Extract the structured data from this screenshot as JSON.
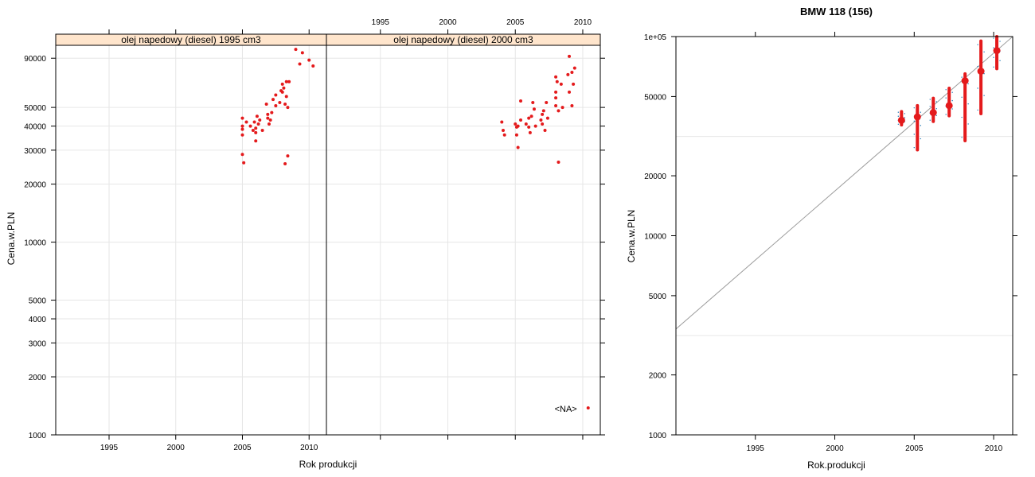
{
  "colors": {
    "point": "#e41a1c",
    "strip_bg": "#ffe5cc",
    "grid": "#e6e6e6",
    "ref_line": "#9b9b9b",
    "jitter": "#1f78b4"
  },
  "chart_data": [
    {
      "type": "scatter",
      "xlabel": "Rok produkcji",
      "ylabel": "Cena.w.PLN",
      "x_scale": "linear",
      "y_scale": "log",
      "xlim": [
        1991,
        2011.3
      ],
      "ylim": [
        1000,
        105000
      ],
      "x_ticks": [
        1995,
        2000,
        2005,
        2010
      ],
      "y_ticks": [
        1000,
        2000,
        3000,
        4000,
        5000,
        10000,
        20000,
        30000,
        40000,
        50000,
        90000
      ],
      "grid": true,
      "panels": [
        {
          "strip": "olej napedowy (diesel) 1995 cm3",
          "points": [
            [
              2005,
              44000
            ],
            [
              2005,
              40000
            ],
            [
              2005,
              38500
            ],
            [
              2005,
              36000
            ],
            [
              2005,
              28500
            ],
            [
              2005.1,
              25800
            ],
            [
              2005.3,
              42000
            ],
            [
              2005.6,
              40000
            ],
            [
              2005.8,
              38000
            ],
            [
              2005.9,
              42000
            ],
            [
              2006,
              39000
            ],
            [
              2006,
              37000
            ],
            [
              2006,
              33500
            ],
            [
              2006.1,
              45000
            ],
            [
              2006.2,
              41000
            ],
            [
              2006.3,
              43000
            ],
            [
              2006.5,
              38000
            ],
            [
              2006.8,
              52000
            ],
            [
              2006.9,
              46000
            ],
            [
              2006.9,
              44000
            ],
            [
              2007,
              41000
            ],
            [
              2007.1,
              43000
            ],
            [
              2007.2,
              47000
            ],
            [
              2007.3,
              55000
            ],
            [
              2007.5,
              51000
            ],
            [
              2007.5,
              58000
            ],
            [
              2007.8,
              53000
            ],
            [
              2007.9,
              61000
            ],
            [
              2008,
              66000
            ],
            [
              2008.1,
              63000
            ],
            [
              2008,
              60000
            ],
            [
              2008.3,
              68000
            ],
            [
              2008.3,
              57000
            ],
            [
              2008.2,
              52000
            ],
            [
              2008.4,
              50000
            ],
            [
              2008.2,
              25500
            ],
            [
              2008.4,
              28000
            ],
            [
              2008.5,
              68000
            ],
            [
              2009,
              100000
            ],
            [
              2009.3,
              84000
            ],
            [
              2009.5,
              96000
            ],
            [
              2010,
              88000
            ],
            [
              2010.3,
              82000
            ]
          ]
        },
        {
          "strip": "olej napedowy (diesel) 2000 cm3",
          "na_label": "<NA>",
          "na_point": [
            2010.4,
            1380
          ],
          "points": [
            [
              2004,
              42000
            ],
            [
              2004.1,
              38000
            ],
            [
              2004.2,
              36000
            ],
            [
              2005,
              41000
            ],
            [
              2005.1,
              39500
            ],
            [
              2005.2,
              40000
            ],
            [
              2005.4,
              43000
            ],
            [
              2005.1,
              36000
            ],
            [
              2005.2,
              31000
            ],
            [
              2005.4,
              54000
            ],
            [
              2005.8,
              41000
            ],
            [
              2006,
              44000
            ],
            [
              2006,
              39500
            ],
            [
              2006.1,
              37000
            ],
            [
              2006.2,
              45000
            ],
            [
              2006.3,
              53000
            ],
            [
              2006.4,
              49000
            ],
            [
              2006.5,
              40000
            ],
            [
              2006.9,
              43000
            ],
            [
              2007,
              46000
            ],
            [
              2007,
              41000
            ],
            [
              2007.2,
              38000
            ],
            [
              2007.1,
              48000
            ],
            [
              2007.4,
              44000
            ],
            [
              2007.3,
              53000
            ],
            [
              2008,
              60000
            ],
            [
              2008,
              72000
            ],
            [
              2008.1,
              68000
            ],
            [
              2008,
              56000
            ],
            [
              2008,
              51000
            ],
            [
              2008.2,
              48000
            ],
            [
              2008.2,
              26000
            ],
            [
              2008.4,
              66000
            ],
            [
              2008.5,
              50000
            ],
            [
              2008.9,
              74000
            ],
            [
              2009,
              92000
            ],
            [
              2009,
              60000
            ],
            [
              2009.2,
              51000
            ],
            [
              2009.2,
              76000
            ],
            [
              2009.3,
              66000
            ],
            [
              2009.4,
              80000
            ]
          ]
        }
      ]
    },
    {
      "type": "scatter",
      "title": "BMW 118 (156)",
      "xlabel": "Rok.produkcji",
      "ylabel": "Cena.w.PLN",
      "x_scale": "linear",
      "y_scale": "log",
      "xlim": [
        1990,
        2011.2
      ],
      "ylim": [
        1000,
        100000
      ],
      "x_ticks": [
        1995,
        2000,
        2005,
        2010
      ],
      "y_ticks": [
        1000,
        2000,
        5000,
        10000,
        20000,
        50000
      ],
      "y_tick_labels": [
        "1000",
        "2000",
        "5000",
        "10000",
        "20000",
        "50000"
      ],
      "y_top_label": "1e+05",
      "grid": true,
      "reference_line": [
        [
          1990,
          3400
        ],
        [
          2011.2,
          100000
        ]
      ],
      "ranges": [
        {
          "x": 2004.2,
          "lo": 36000,
          "hi": 42000,
          "mid": 38000
        },
        {
          "x": 2005.2,
          "lo": 27000,
          "hi": 45000,
          "mid": 39500
        },
        {
          "x": 2006.2,
          "lo": 37500,
          "hi": 49000,
          "mid": 41500
        },
        {
          "x": 2007.2,
          "lo": 40000,
          "hi": 55000,
          "mid": 45000
        },
        {
          "x": 2008.2,
          "lo": 30000,
          "hi": 65000,
          "mid": 60000
        },
        {
          "x": 2009.2,
          "lo": 41000,
          "hi": 95000,
          "mid": 67000
        },
        {
          "x": 2010.2,
          "lo": 69000,
          "hi": 100000,
          "mid": 85000
        }
      ]
    }
  ]
}
